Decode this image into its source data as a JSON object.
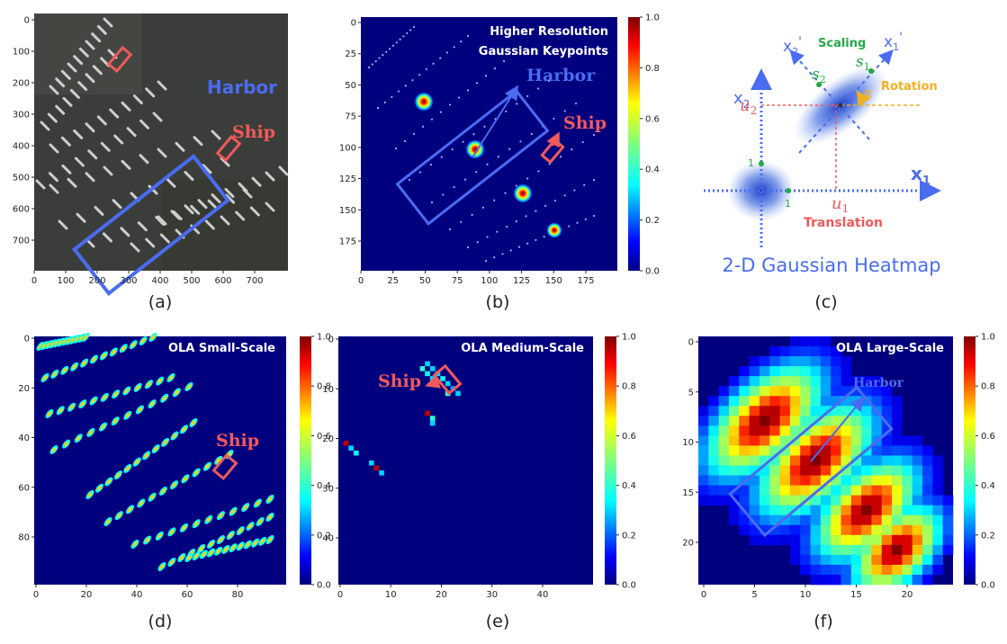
{
  "captions": [
    "(a)",
    "(b)",
    "(c)",
    "(d)",
    "(e)",
    "(f)"
  ],
  "labels": {
    "harbor": "Harbor",
    "ship": "Ship",
    "harbor_serif": "Harbor"
  },
  "panel_a": {
    "x_ticks": [
      "0",
      "100",
      "200",
      "300",
      "400",
      "500",
      "600",
      "700"
    ],
    "y_ticks": [
      "0",
      "100",
      "200",
      "300",
      "400",
      "500",
      "600",
      "700"
    ]
  },
  "panel_b": {
    "title_line1": "Higher Resolution",
    "title_line2": "Gaussian Keypoints",
    "x_ticks": [
      "0",
      "25",
      "50",
      "75",
      "100",
      "125",
      "150",
      "175"
    ],
    "y_ticks": [
      "0",
      "25",
      "50",
      "75",
      "100",
      "125",
      "150",
      "175"
    ],
    "colorbar_ticks": [
      "1.0",
      "0.8",
      "0.6",
      "0.4",
      "0.2",
      "0.0"
    ]
  },
  "panel_c": {
    "axis_x1": "x",
    "axis_x1_sub": "1",
    "axis_x2": "x",
    "axis_x2_sub": "2",
    "axis_x1p": "x",
    "axis_x1p_sub": "1",
    "axis_x1p_prime": "'",
    "axis_x2p": "x",
    "axis_x2p_sub": "2",
    "axis_x2p_prime": "'",
    "scaling": "Scaling",
    "s1": "s",
    "s1_sub": "1",
    "s2": "s",
    "s2_sub": "2",
    "rotation": "Rotation",
    "alpha": "α",
    "u1": "u",
    "u1_sub": "1",
    "u2": "u",
    "u2_sub": "2",
    "one_x": "1",
    "one_y": "1",
    "translation": "Translation",
    "title": "2-D Gaussian Heatmap"
  },
  "panel_d": {
    "title": "OLA Small-Scale",
    "x_ticks": [
      "0",
      "20",
      "40",
      "60",
      "80"
    ],
    "y_ticks": [
      "0",
      "20",
      "40",
      "60",
      "80"
    ],
    "colorbar_ticks": [
      "1.0",
      "0.8",
      "0.6",
      "0.4",
      "0.2",
      "0.0"
    ]
  },
  "panel_e": {
    "title": "OLA Medium-Scale",
    "x_ticks": [
      "0",
      "10",
      "20",
      "30",
      "40"
    ],
    "y_ticks": [
      "0",
      "10",
      "20",
      "30",
      "40"
    ],
    "colorbar_ticks": [
      "1.0",
      "0.8",
      "0.6",
      "0.4",
      "0.2",
      "0.0"
    ]
  },
  "panel_f": {
    "title": "OLA Large-Scale",
    "x_ticks": [
      "0",
      "5",
      "10",
      "15",
      "20"
    ],
    "y_ticks": [
      "0",
      "5",
      "10",
      "15",
      "20"
    ],
    "colorbar_ticks": [
      "1.0",
      "0.8",
      "0.6",
      "0.4",
      "0.2",
      "0.0"
    ]
  },
  "colors": {
    "heat_bg": "#00007f",
    "box_blue": "#4a6cf0",
    "box_red": "#f05a5a",
    "scale_green": "#22aa44",
    "rotation_gold": "#f0b020"
  }
}
